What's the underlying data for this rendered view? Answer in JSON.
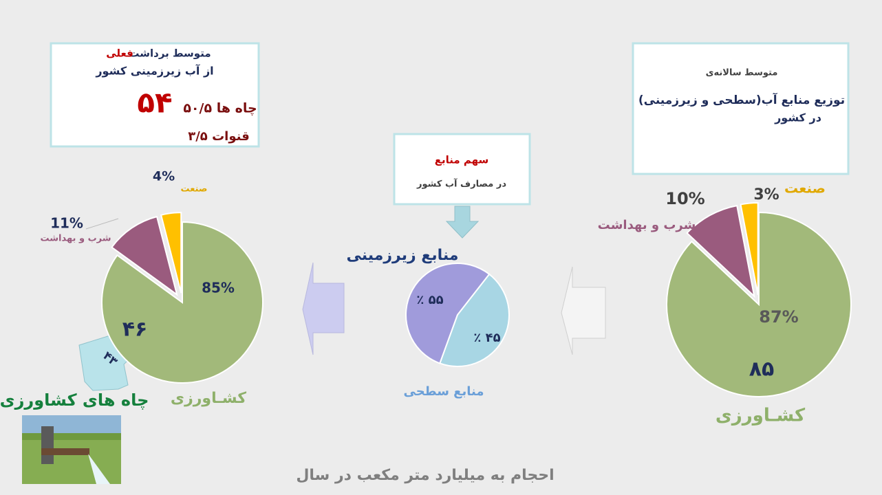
{
  "chart_data": [
    {
      "type": "pie",
      "categories": [
        "کشـاورزی",
        "شرب و بهداشت",
        "صنعت"
      ],
      "values": [
        87,
        10,
        3
      ],
      "value_labels": [
        "87%",
        "10%",
        "3%"
      ],
      "colors": [
        "#a2b97a",
        "#9a5b7e",
        "#ffc000"
      ],
      "annotation": "۸۵"
    },
    {
      "type": "pie",
      "categories": [
        "منابع زیرزمینی",
        "منابع سطحی"
      ],
      "values": [
        55,
        45
      ],
      "value_labels": [
        "٪ ۵۵",
        "٪ ۴۵"
      ],
      "colors": [
        "#a09bdb",
        "#a8d6e4"
      ]
    },
    {
      "type": "pie",
      "categories": [
        "کشـاورزی",
        "شرب و بهداشت",
        "صنعت"
      ],
      "values": [
        85,
        11,
        4
      ],
      "value_labels": [
        "85%",
        "11%",
        "4%"
      ],
      "colors": [
        "#a2b97a",
        "#9a5b7e",
        "#ffc000"
      ],
      "annotation": "۴۶"
    }
  ],
  "right_box": {
    "line1": "متوسط سالانه‌ی",
    "line2": "توزیع منابع آب(سطحی و زیرزمینی)",
    "line3": "در کشور"
  },
  "center_box": {
    "title": "سهم منابع",
    "subtitle": "در مصارف آب کشور"
  },
  "left_box": {
    "line1": "متوسط برداشت",
    "highlight": "فعلی",
    "line2": "از آب زیرزمینی کشور",
    "total": "۵۴",
    "wells": "۵۰/۵ چاه ها",
    "qanats": "۳/۵ قنوات"
  },
  "wells_arrow": {
    "value": "۴۳",
    "label": "چاه های کشاورزی"
  },
  "footer": "احجام به میلیارد متر مکعب در سال"
}
